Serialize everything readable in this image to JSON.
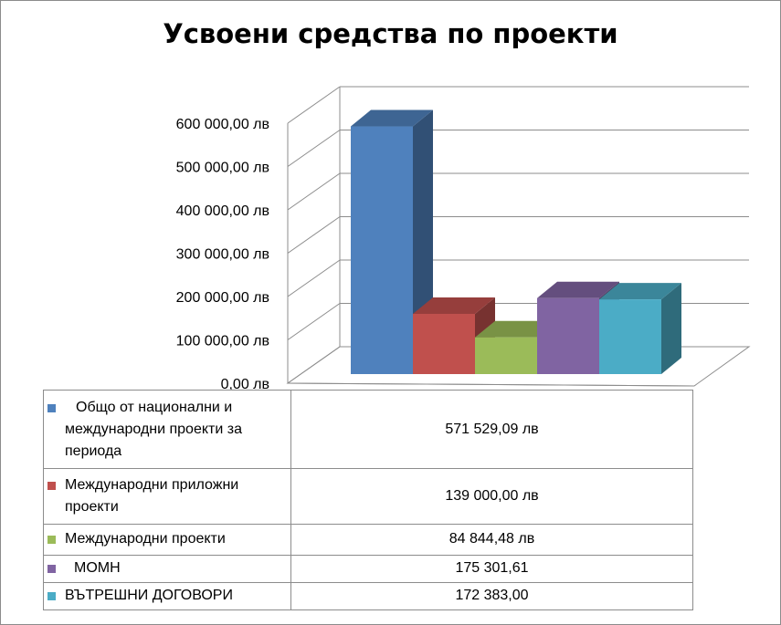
{
  "chart_data": {
    "type": "bar",
    "title": "Усвоени средства по проекти",
    "categories": [
      "Общо от национални и международни проекти за периода",
      "Международни приложни проекти",
      "Международни проекти",
      "МОМН",
      "ВЪТРЕШНИ ДОГОВОРИ"
    ],
    "values": [
      571529.09,
      139000.0,
      84844.48,
      175301.61,
      172383.0
    ],
    "value_labels": [
      "571 529,09 лв",
      "139 000,00 лв",
      "84 844,48 лв",
      "175 301,61",
      "172 383,00"
    ],
    "colors": [
      "#4f81bd",
      "#c0504d",
      "#9bbb59",
      "#8064a2",
      "#4bacc6"
    ],
    "yticks": [
      "0,00 лв",
      "100 000,00 лв",
      "200 000,00 лв",
      "300 000,00 лв",
      "400 000,00 лв",
      "500 000,00 лв",
      "600 000,00 лв"
    ],
    "ylim": [
      0,
      600000
    ],
    "grid": true,
    "legend": "data-table"
  }
}
